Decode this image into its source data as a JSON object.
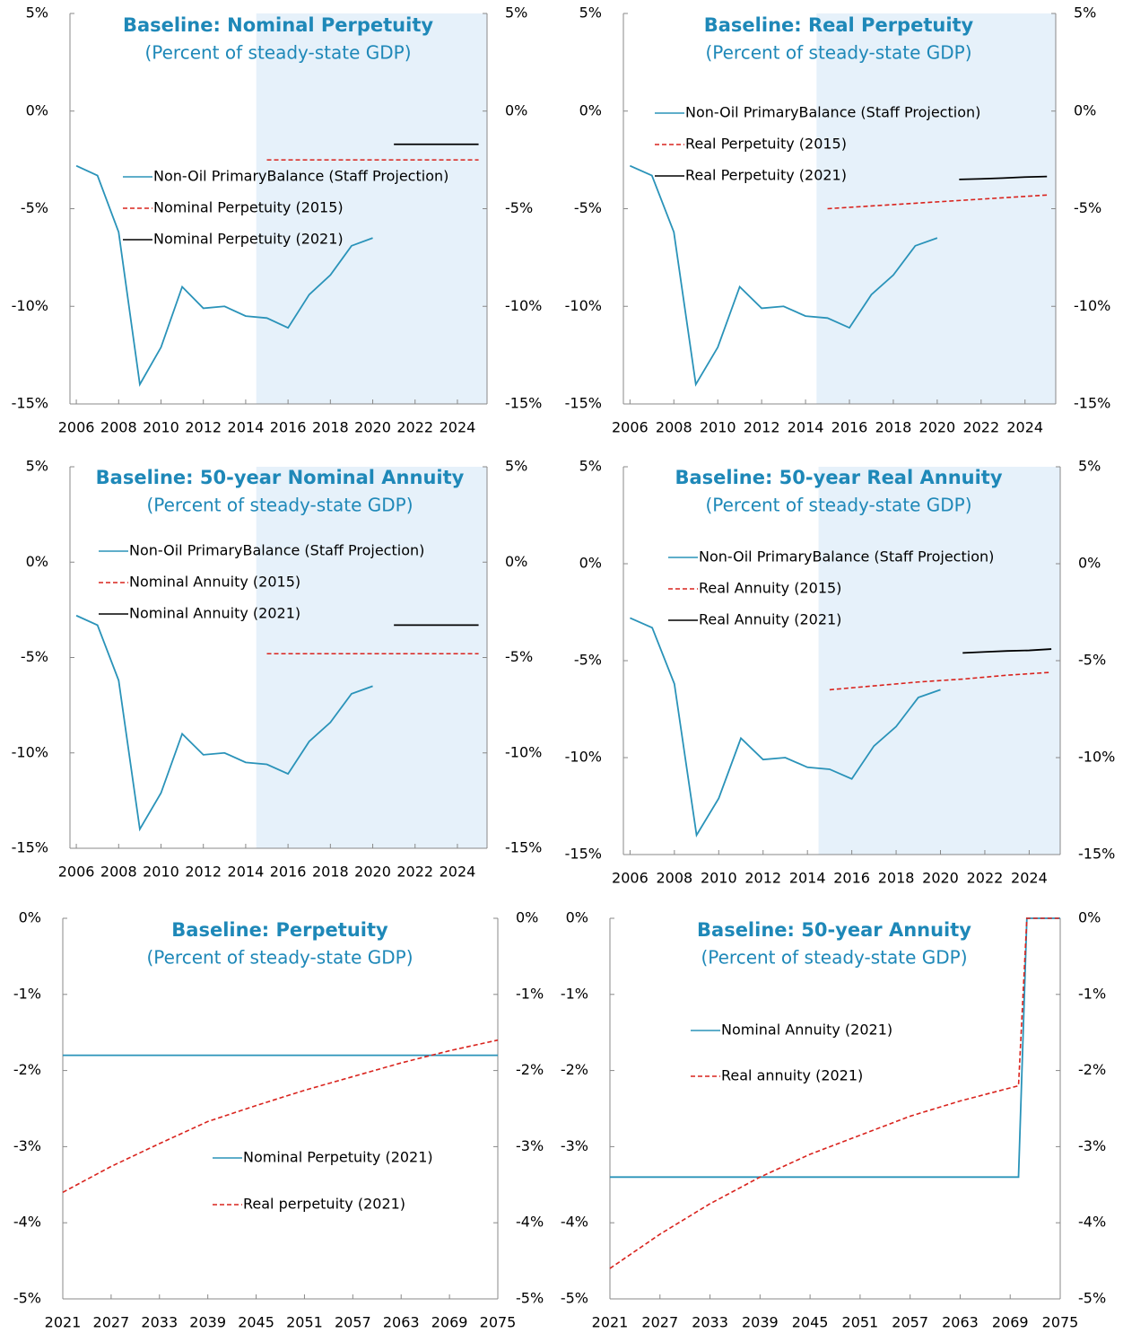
{
  "chart_data": [
    {
      "type": "line",
      "title": "Baseline: Nominal Perpetuity",
      "subtitle": "(Percent of steady-state GDP)",
      "xlim": [
        2005.7,
        2025.4
      ],
      "xticks": [
        2006,
        2008,
        2010,
        2012,
        2014,
        2016,
        2018,
        2020,
        2022,
        2024
      ],
      "ylim": [
        -15,
        5
      ],
      "yticks": [
        {
          "value": 5,
          "label": "5%"
        },
        {
          "value": 0,
          "label": "0%"
        },
        {
          "value": -5,
          "label": "-5%"
        },
        {
          "value": -10,
          "label": "-10%"
        },
        {
          "value": -15,
          "label": "-15%"
        }
      ],
      "shaded_x": [
        2014.5,
        2025.4
      ],
      "series": [
        {
          "name": "Non-Oil PrimaryBalance  (Staff Projection)",
          "color": "#2a93b9",
          "dash": false,
          "x": [
            2006,
            2007,
            2008,
            2009,
            2010,
            2011,
            2012,
            2013,
            2014,
            2015,
            2016,
            2017,
            2018,
            2019,
            2020
          ],
          "values": [
            -2.8,
            -3.3,
            -6.2,
            -14.0,
            -12.1,
            -9.0,
            -10.1,
            -10.0,
            -10.5,
            -10.6,
            -11.1,
            -9.4,
            -8.4,
            -6.9,
            -6.5
          ]
        },
        {
          "name": "Nominal Perpetuity (2015)",
          "color": "#d9231d",
          "dash": true,
          "x": [
            2015,
            2025
          ],
          "values": [
            -2.5,
            -2.5
          ]
        },
        {
          "name": "Nominal Perpetuity (2021)",
          "color": "#000000",
          "dash": false,
          "x": [
            2021,
            2025
          ],
          "values": [
            -1.7,
            -1.7
          ]
        }
      ]
    },
    {
      "type": "line",
      "title": "Baseline: Real Perpetuity",
      "subtitle": "(Percent of steady-state GDP)",
      "xlim": [
        2005.7,
        2025.4
      ],
      "xticks": [
        2006,
        2008,
        2010,
        2012,
        2014,
        2016,
        2018,
        2020,
        2022,
        2024
      ],
      "ylim": [
        -15,
        5
      ],
      "yticks": [
        {
          "value": 5,
          "label": "5%"
        },
        {
          "value": 0,
          "label": "0%"
        },
        {
          "value": -5,
          "label": "-5%"
        },
        {
          "value": -10,
          "label": "-10%"
        },
        {
          "value": -15,
          "label": "-15%"
        }
      ],
      "shaded_x": [
        2014.5,
        2025.4
      ],
      "series": [
        {
          "name": "Non-Oil PrimaryBalance  (Staff Projection)",
          "color": "#2a93b9",
          "dash": false,
          "x": [
            2006,
            2007,
            2008,
            2009,
            2010,
            2011,
            2012,
            2013,
            2014,
            2015,
            2016,
            2017,
            2018,
            2019,
            2020
          ],
          "values": [
            -2.8,
            -3.3,
            -6.2,
            -14.0,
            -12.1,
            -9.0,
            -10.1,
            -10.0,
            -10.5,
            -10.6,
            -11.1,
            -9.4,
            -8.4,
            -6.9,
            -6.5
          ]
        },
        {
          "name": "Real Perpetuity (2015)",
          "color": "#d9231d",
          "dash": true,
          "x": [
            2015,
            2017,
            2019,
            2021,
            2023,
            2025
          ],
          "values": [
            -5.0,
            -4.86,
            -4.72,
            -4.58,
            -4.44,
            -4.3
          ]
        },
        {
          "name": "Real Perpetuity (2021)",
          "color": "#000000",
          "dash": false,
          "x": [
            2021,
            2022,
            2023,
            2024,
            2025
          ],
          "values": [
            -3.5,
            -3.47,
            -3.43,
            -3.38,
            -3.35
          ]
        }
      ]
    },
    {
      "type": "line",
      "title": "Baseline: 50-year Nominal Annuity",
      "subtitle": "(Percent of steady-state GDP)",
      "xlim": [
        2005.7,
        2025.4
      ],
      "xticks": [
        2006,
        2008,
        2010,
        2012,
        2014,
        2016,
        2018,
        2020,
        2022,
        2024
      ],
      "ylim": [
        -15,
        5
      ],
      "yticks": [
        {
          "value": 5,
          "label": "5%"
        },
        {
          "value": 0,
          "label": "0%"
        },
        {
          "value": -5,
          "label": "-5%"
        },
        {
          "value": -10,
          "label": "-10%"
        },
        {
          "value": -15,
          "label": "-15%"
        }
      ],
      "shaded_x": [
        2014.5,
        2025.4
      ],
      "series": [
        {
          "name": "Non-Oil PrimaryBalance  (Staff Projection)",
          "color": "#2a93b9",
          "dash": false,
          "x": [
            2006,
            2007,
            2008,
            2009,
            2010,
            2011,
            2012,
            2013,
            2014,
            2015,
            2016,
            2017,
            2018,
            2019,
            2020
          ],
          "values": [
            -2.8,
            -3.3,
            -6.2,
            -14.0,
            -12.1,
            -9.0,
            -10.1,
            -10.0,
            -10.5,
            -10.6,
            -11.1,
            -9.4,
            -8.4,
            -6.9,
            -6.5
          ]
        },
        {
          "name": "Nominal Annuity (2015)",
          "color": "#d9231d",
          "dash": true,
          "x": [
            2015,
            2025
          ],
          "values": [
            -4.8,
            -4.8
          ]
        },
        {
          "name": "Nominal Annuity (2021)",
          "color": "#000000",
          "dash": false,
          "x": [
            2021,
            2025
          ],
          "values": [
            -3.3,
            -3.3
          ]
        }
      ]
    },
    {
      "type": "line",
      "title": "Baseline: 50-year Real Annuity",
      "subtitle": "(Percent of steady-state GDP)",
      "xlim": [
        2005.7,
        2025.4
      ],
      "xticks": [
        2006,
        2008,
        2010,
        2012,
        2014,
        2016,
        2018,
        2020,
        2022,
        2024
      ],
      "ylim": [
        -15,
        5
      ],
      "yticks": [
        {
          "value": 5,
          "label": "5%"
        },
        {
          "value": 0,
          "label": "0%"
        },
        {
          "value": -5,
          "label": "-5%"
        },
        {
          "value": -10,
          "label": "-10%"
        },
        {
          "value": -15,
          "label": "-15%"
        }
      ],
      "shaded_x": [
        2014.5,
        2025.4
      ],
      "series": [
        {
          "name": "Non-Oil PrimaryBalance  (Staff Projection)",
          "color": "#2a93b9",
          "dash": false,
          "x": [
            2006,
            2007,
            2008,
            2009,
            2010,
            2011,
            2012,
            2013,
            2014,
            2015,
            2016,
            2017,
            2018,
            2019,
            2020
          ],
          "values": [
            -2.8,
            -3.3,
            -6.2,
            -14.0,
            -12.1,
            -9.0,
            -10.1,
            -10.0,
            -10.5,
            -10.6,
            -11.1,
            -9.4,
            -8.4,
            -6.9,
            -6.5
          ]
        },
        {
          "name": "Real Annuity (2015)",
          "color": "#d9231d",
          "dash": true,
          "x": [
            2015,
            2017,
            2019,
            2021,
            2023,
            2025
          ],
          "values": [
            -6.5,
            -6.3,
            -6.1,
            -5.95,
            -5.75,
            -5.6
          ]
        },
        {
          "name": "Real Annuity (2021)",
          "color": "#000000",
          "dash": false,
          "x": [
            2021,
            2022,
            2023,
            2024,
            2025
          ],
          "values": [
            -4.6,
            -4.55,
            -4.5,
            -4.47,
            -4.4
          ]
        }
      ]
    },
    {
      "type": "line",
      "title": "Baseline: Perpetuity",
      "subtitle": "(Percent of steady-state GDP)",
      "xlim": [
        2021,
        2075
      ],
      "xticks": [
        2021,
        2027,
        2033,
        2039,
        2045,
        2051,
        2057,
        2063,
        2069,
        2075
      ],
      "ylim": [
        -5,
        0
      ],
      "yticks": [
        {
          "value": 0,
          "label": "0%"
        },
        {
          "value": -1,
          "label": "-1%"
        },
        {
          "value": -2,
          "label": "-2%"
        },
        {
          "value": -3,
          "label": "-3%"
        },
        {
          "value": -4,
          "label": "-4%"
        },
        {
          "value": -5,
          "label": "-5%"
        }
      ],
      "series": [
        {
          "name": "Nominal Perpetuity (2021)",
          "color": "#2a93b9",
          "dash": false,
          "x": [
            2021,
            2075
          ],
          "values": [
            -1.8,
            -1.8
          ]
        },
        {
          "name": "Real perpetuity  (2021)",
          "color": "#d9231d",
          "dash": true,
          "x": [
            2021,
            2027,
            2033,
            2039,
            2045,
            2051,
            2057,
            2063,
            2069,
            2075
          ],
          "values": [
            -3.6,
            -3.26,
            -2.96,
            -2.67,
            -2.46,
            -2.26,
            -2.08,
            -1.9,
            -1.74,
            -1.6
          ]
        }
      ]
    },
    {
      "type": "line",
      "title": "Baseline: 50-year Annuity",
      "subtitle": "(Percent of steady-state GDP)",
      "xlim": [
        2021,
        2075
      ],
      "xticks": [
        2021,
        2027,
        2033,
        2039,
        2045,
        2051,
        2057,
        2063,
        2069,
        2075
      ],
      "ylim": [
        -5,
        0
      ],
      "yticks": [
        {
          "value": 0,
          "label": "0%"
        },
        {
          "value": -1,
          "label": "-1%"
        },
        {
          "value": -2,
          "label": "-2%"
        },
        {
          "value": -3,
          "label": "-3%"
        },
        {
          "value": -4,
          "label": "-4%"
        },
        {
          "value": -5,
          "label": "-5%"
        }
      ],
      "series": [
        {
          "name": "Nominal Annuity (2021)",
          "color": "#2a93b9",
          "dash": false,
          "x": [
            2021,
            2070,
            2071,
            2075
          ],
          "values": [
            -3.4,
            -3.4,
            0,
            0
          ]
        },
        {
          "name": "Real annuity (2021)",
          "color": "#d9231d",
          "dash": true,
          "x": [
            2021,
            2027,
            2033,
            2039,
            2045,
            2051,
            2057,
            2063,
            2070,
            2071,
            2075
          ],
          "values": [
            -4.6,
            -4.15,
            -3.75,
            -3.4,
            -3.1,
            -2.85,
            -2.6,
            -2.4,
            -2.2,
            0,
            0
          ]
        }
      ]
    }
  ]
}
